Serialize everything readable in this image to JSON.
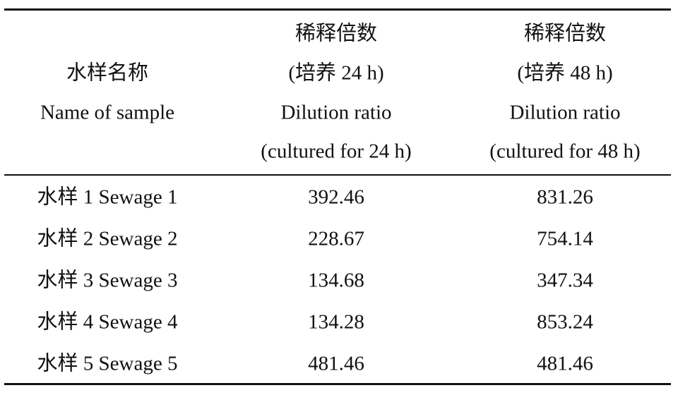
{
  "table": {
    "header": [
      [
        "水样名称",
        "Name of sample"
      ],
      [
        "稀释倍数",
        "(培养 24 h)",
        "Dilution ratio",
        "(cultured for 24 h)"
      ],
      [
        "稀释倍数",
        "(培养 48 h)",
        "Dilution ratio",
        "(cultured for 48 h)"
      ]
    ],
    "rows": [
      [
        "水样 1 Sewage 1",
        392.46,
        831.26
      ],
      [
        "水样 2 Sewage 2",
        228.67,
        754.14
      ],
      [
        "水样 3 Sewage 3",
        134.68,
        347.34
      ],
      [
        "水样 4 Sewage 4",
        134.28,
        853.24
      ],
      [
        "水样 5 Sewage 5",
        481.46,
        481.46
      ]
    ]
  }
}
